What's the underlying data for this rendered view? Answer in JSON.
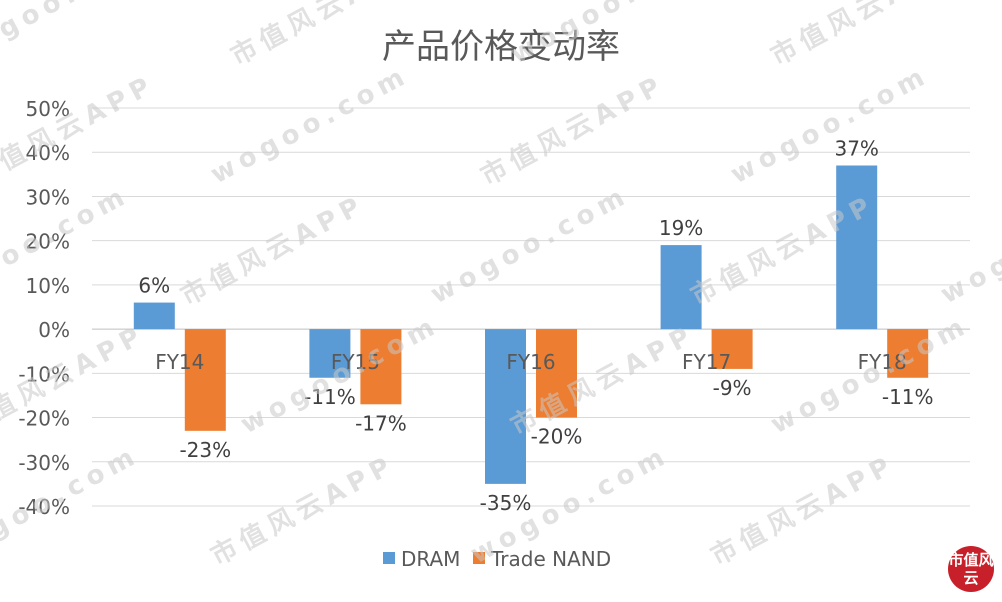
{
  "chart_data": {
    "type": "bar",
    "title": "产品价格变动率",
    "categories": [
      "FY14",
      "FY15",
      "FY16",
      "FY17",
      "FY18"
    ],
    "series": [
      {
        "name": "DRAM",
        "values": [
          6,
          -11,
          -35,
          19,
          37
        ],
        "labels": [
          "6%",
          "-11%",
          "-35%",
          "19%",
          "37%"
        ],
        "color": "#5b9bd5"
      },
      {
        "name": "Trade NAND",
        "values": [
          -23,
          -17,
          -20,
          -9,
          -11
        ],
        "labels": [
          "-23%",
          "-17%",
          "-20%",
          "-9%",
          "-11%"
        ],
        "color": "#ed7d31"
      }
    ],
    "ylim": [
      -40,
      50
    ],
    "yticks": [
      50,
      40,
      30,
      20,
      10,
      0,
      -10,
      -20,
      -30,
      -40
    ],
    "ytick_labels": [
      "50%",
      "40%",
      "30%",
      "20%",
      "10%",
      "0%",
      "-10%",
      "-20%",
      "-30%",
      "-40%"
    ],
    "grid": true,
    "legend_position": "bottom"
  },
  "watermark": {
    "text_cn": "市值风云APP",
    "text_url": "wogoo.com",
    "seal": "市值风云"
  }
}
